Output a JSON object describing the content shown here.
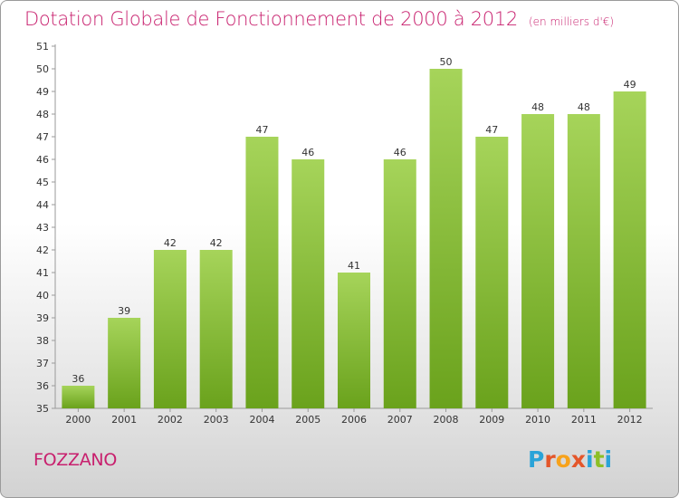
{
  "header": {
    "title": "Dotation Globale de Fonctionnement de 2000 à 2012",
    "subtitle": "(en milliers d'€)"
  },
  "commune": "FOZZANO",
  "logo": {
    "letters": [
      "P",
      "r",
      "o",
      "x",
      "i",
      "t",
      "i"
    ],
    "colors": [
      "#2aa3d8",
      "#e4562a",
      "#f7a21b",
      "#e4562a",
      "#2aa3d8",
      "#8cbf26",
      "#2aa3d8"
    ]
  },
  "chart_data": {
    "type": "bar",
    "title": "Dotation Globale de Fonctionnement de 2000 à 2012",
    "subtitle": "(en milliers d'€)",
    "categories": [
      "2000",
      "2001",
      "2002",
      "2003",
      "2004",
      "2005",
      "2006",
      "2007",
      "2008",
      "2009",
      "2010",
      "2011",
      "2012"
    ],
    "values": [
      36,
      39,
      42,
      42,
      47,
      46,
      41,
      46,
      50,
      47,
      48,
      48,
      49
    ],
    "ylim": [
      35,
      51
    ],
    "yticks": [
      35,
      36,
      37,
      38,
      39,
      40,
      41,
      42,
      43,
      44,
      45,
      46,
      47,
      48,
      49,
      50,
      51
    ],
    "grid": false,
    "bar_color_top": "#a6d45a",
    "bar_color_bottom": "#6aa21c"
  }
}
